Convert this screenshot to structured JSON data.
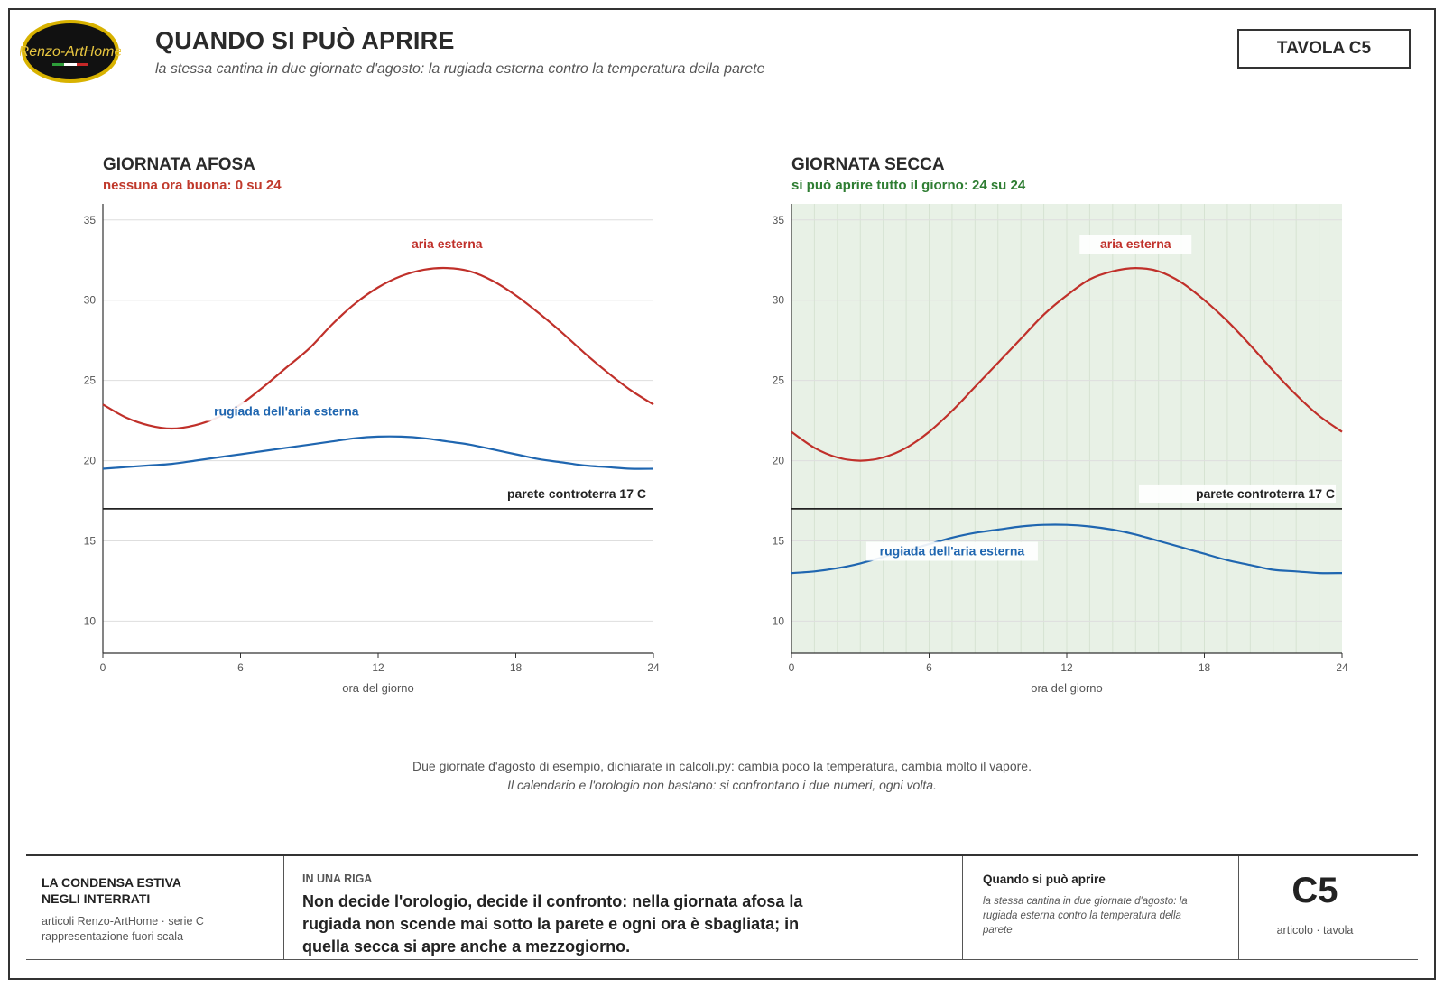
{
  "header": {
    "logo_text": "Renzo-ArtHome",
    "title": "QUANDO SI PUÒ APRIRE",
    "subtitle": "la stessa cantina in due giornate d'agosto: la rugiada esterna contro la temperatura della parete",
    "tavola": "TAVOLA C5"
  },
  "chart_data": [
    {
      "type": "line",
      "title": "GIORNATA AFOSA",
      "subtitle": "nessuna ora buona: 0 su 24",
      "subtitle_color": "#c0392b",
      "shaded_ok": false,
      "xlabel": "ora del giorno",
      "ylabel": "",
      "xlim": [
        0,
        24
      ],
      "ylim": [
        8,
        36
      ],
      "xticks": [
        0,
        6,
        12,
        18,
        24
      ],
      "yticks": [
        10,
        15,
        20,
        25,
        30,
        35
      ],
      "grid": true,
      "series": [
        {
          "name": "aria esterna",
          "color": "#c0302a",
          "x": [
            0,
            1,
            2,
            3,
            4,
            5,
            6,
            7,
            8,
            9,
            10,
            11,
            12,
            13,
            14,
            15,
            16,
            17,
            18,
            19,
            20,
            21,
            22,
            23,
            24
          ],
          "y": [
            23.5,
            22.7,
            22.2,
            22.0,
            22.2,
            22.7,
            23.5,
            24.6,
            25.8,
            27.0,
            28.5,
            29.8,
            30.8,
            31.5,
            31.9,
            32.0,
            31.8,
            31.2,
            30.3,
            29.2,
            28.0,
            26.7,
            25.5,
            24.4,
            23.5
          ]
        },
        {
          "name": "rugiada dell'aria esterna",
          "color": "#1f66b0",
          "x": [
            0,
            1,
            2,
            3,
            4,
            5,
            6,
            7,
            8,
            9,
            10,
            11,
            12,
            13,
            14,
            15,
            16,
            17,
            18,
            19,
            20,
            21,
            22,
            23,
            24
          ],
          "y": [
            19.5,
            19.6,
            19.7,
            19.8,
            20.0,
            20.2,
            20.4,
            20.6,
            20.8,
            21.0,
            21.2,
            21.4,
            21.5,
            21.5,
            21.4,
            21.2,
            21.0,
            20.7,
            20.4,
            20.1,
            19.9,
            19.7,
            19.6,
            19.5,
            19.5
          ]
        },
        {
          "name": "parete controterra 17 C",
          "color": "#222222",
          "x": [
            0,
            24
          ],
          "y": [
            17,
            17
          ]
        }
      ],
      "label_positions": [
        "top",
        "upper-left",
        "right"
      ]
    },
    {
      "type": "line",
      "title": "GIORNATA SECCA",
      "subtitle": "si può aprire tutto il giorno: 24 su 24",
      "subtitle_color": "#2e7d32",
      "shaded_ok": true,
      "xlabel": "ora del giorno",
      "ylabel": "",
      "xlim": [
        0,
        24
      ],
      "ylim": [
        8,
        36
      ],
      "xticks": [
        0,
        6,
        12,
        18,
        24
      ],
      "yticks": [
        10,
        15,
        20,
        25,
        30,
        35
      ],
      "grid": true,
      "series": [
        {
          "name": "aria esterna",
          "color": "#c0302a",
          "x": [
            0,
            1,
            2,
            3,
            4,
            5,
            6,
            7,
            8,
            9,
            10,
            11,
            12,
            13,
            14,
            15,
            16,
            17,
            18,
            19,
            20,
            21,
            22,
            23,
            24
          ],
          "y": [
            21.8,
            20.8,
            20.2,
            20.0,
            20.2,
            20.8,
            21.8,
            23.1,
            24.6,
            26.1,
            27.6,
            29.1,
            30.3,
            31.3,
            31.8,
            32.0,
            31.8,
            31.1,
            30.0,
            28.7,
            27.2,
            25.6,
            24.1,
            22.8,
            21.8
          ]
        },
        {
          "name": "rugiada dell'aria esterna",
          "color": "#1f66b0",
          "x": [
            0,
            1,
            2,
            3,
            4,
            5,
            6,
            7,
            8,
            9,
            10,
            11,
            12,
            13,
            14,
            15,
            16,
            17,
            18,
            19,
            20,
            21,
            22,
            23,
            24
          ],
          "y": [
            13.0,
            13.1,
            13.3,
            13.6,
            14.0,
            14.4,
            14.8,
            15.2,
            15.5,
            15.7,
            15.9,
            16.0,
            16.0,
            15.9,
            15.7,
            15.4,
            15.0,
            14.6,
            14.2,
            13.8,
            13.5,
            13.2,
            13.1,
            13.0,
            13.0
          ]
        },
        {
          "name": "parete controterra 17 C",
          "color": "#222222",
          "x": [
            0,
            24
          ],
          "y": [
            17,
            17
          ]
        }
      ],
      "label_positions": [
        "top",
        "below",
        "right"
      ]
    }
  ],
  "captions": {
    "line1": "Due giornate d'agosto di esempio, dichiarate in calcoli.py: cambia poco la temperatura, cambia molto il vapore.",
    "line2": "Il calendario e l'orologio non bastano: si confrontano i due numeri, ogni volta."
  },
  "footer": {
    "series_title_1": "LA CONDENSA ESTIVA",
    "series_title_2": "NEGLI INTERRATI",
    "series_sub_1": "articoli Renzo-ArtHome · serie C",
    "series_sub_2": "rappresentazione fuori scala",
    "riga_label": "IN UNA RIGA",
    "riga_text": "Non decide l'orologio, decide il confronto: nella giornata afosa la rugiada non scende mai sotto la parete e ogni ora è sbagliata; in quella secca si apre anche a mezzogiorno.",
    "card_title": "Quando si può aprire",
    "card_sub": "la stessa cantina in due giornate d'agosto: la rugiada esterna contro la temperatura della parete",
    "code": "C5",
    "code_sub": "articolo · tavola"
  }
}
